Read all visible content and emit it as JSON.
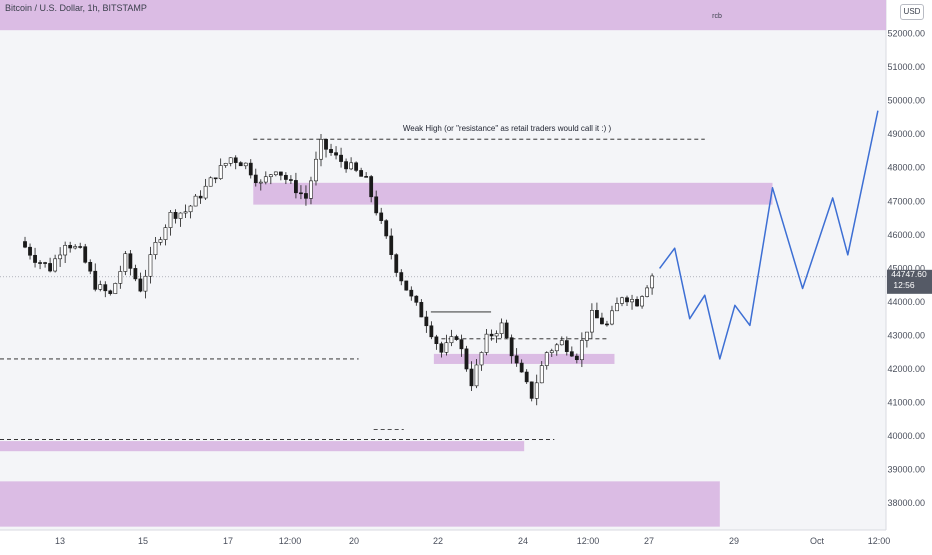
{
  "header": {
    "title": "Bitcoin / U.S. Dollar, 1h, BITSTAMP",
    "currency": "USD"
  },
  "price_badge": {
    "price": "44747.60",
    "countdown": "12:56"
  },
  "annotations": {
    "weak_high": "Weak High (or \"resistance\" as retail traders would call it :) )",
    "zone_label": "rcb"
  },
  "colors": {
    "background": "#f4f5f8",
    "zone": "#d9b8e3",
    "projection": "#3d6fd4",
    "candle": "#1a1a1a",
    "badge": "#555a66"
  },
  "chart_data": {
    "type": "candlestick",
    "symbol": "BTCUSD",
    "interval": "1h",
    "ylim": [
      37200,
      53000
    ],
    "y_ticks": [
      38000,
      39000,
      40000,
      41000,
      42000,
      43000,
      44000,
      45000,
      46000,
      47000,
      48000,
      49000,
      50000,
      51000,
      52000
    ],
    "x_ticks": [
      "13",
      "15",
      "17",
      "12:00",
      "20",
      "22",
      "24",
      "12:00",
      "27",
      "29",
      "Oct",
      "12:00"
    ],
    "price_path": [
      [
        0,
        45800
      ],
      [
        1,
        45300
      ],
      [
        2,
        45000
      ],
      [
        3,
        45800
      ],
      [
        4,
        45500
      ],
      [
        5,
        44500
      ],
      [
        6,
        44200
      ],
      [
        7,
        45300
      ],
      [
        8,
        44400
      ],
      [
        9,
        45700
      ],
      [
        10,
        46600
      ],
      [
        11,
        46700
      ],
      [
        12,
        47200
      ],
      [
        13,
        47800
      ],
      [
        14,
        48300
      ],
      [
        15,
        48100
      ],
      [
        16,
        47500
      ],
      [
        17,
        48000
      ],
      [
        18,
        47500
      ],
      [
        19,
        47100
      ],
      [
        20,
        48700
      ],
      [
        21,
        48300
      ],
      [
        22,
        48000
      ],
      [
        23,
        47600
      ],
      [
        24,
        46300
      ],
      [
        25,
        45000
      ],
      [
        26,
        44100
      ],
      [
        27,
        43400
      ],
      [
        28,
        42500
      ],
      [
        29,
        43000
      ],
      [
        30,
        41600
      ],
      [
        31,
        42900
      ],
      [
        32,
        43300
      ],
      [
        33,
        42100
      ],
      [
        34,
        41200
      ],
      [
        35,
        42500
      ],
      [
        36,
        42800
      ],
      [
        37,
        42400
      ],
      [
        38,
        43600
      ],
      [
        39,
        43300
      ],
      [
        40,
        44200
      ],
      [
        41,
        44000
      ],
      [
        42,
        44800
      ]
    ],
    "zones": [
      {
        "from": 0,
        "to": 1.0,
        "low": 52100,
        "high": 53000,
        "label": "rcb"
      },
      {
        "from": 15.5,
        "to": 50,
        "low": 46900,
        "high": 47550
      },
      {
        "from": 27.5,
        "to": 39.5,
        "low": 42150,
        "high": 42450
      },
      {
        "from": 0,
        "to": 33.5,
        "low": 39550,
        "high": 39850
      },
      {
        "from": 0,
        "to": 46.5,
        "low": 37300,
        "high": 38650
      }
    ],
    "levels": [
      {
        "price": 48850,
        "from": 15.5,
        "to": 45.5,
        "label": "Weak High (or \"resistance\" as retail traders would call it :) )"
      },
      {
        "price": 42300,
        "from": 0,
        "to": 22.5
      },
      {
        "price": 39900,
        "from": 0,
        "to": 35.5
      },
      {
        "price": 42900,
        "from": 28,
        "to": 39
      },
      {
        "price": 40200,
        "from": 23.5,
        "to": 25.5
      }
    ],
    "projection": [
      [
        42.5,
        45000
      ],
      [
        43.5,
        45600
      ],
      [
        44.5,
        43500
      ],
      [
        45.5,
        44200
      ],
      [
        46.5,
        42300
      ],
      [
        47.5,
        43900
      ],
      [
        48.5,
        43300
      ],
      [
        50,
        47400
      ],
      [
        52,
        44400
      ],
      [
        54,
        47100
      ],
      [
        55,
        45400
      ],
      [
        57,
        49700
      ]
    ],
    "last_price": 44747.6
  }
}
